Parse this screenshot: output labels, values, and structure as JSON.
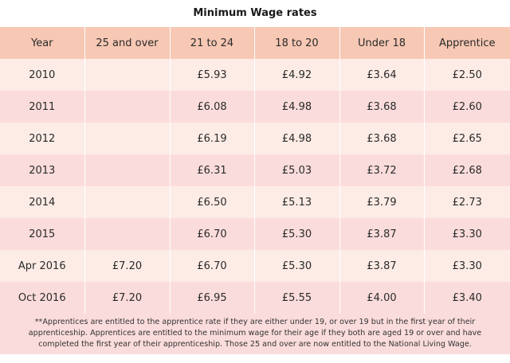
{
  "title": "Minimum Wage rates",
  "table": {
    "headers": [
      "Year",
      "25 and over",
      "21 to 24",
      "18 to 20",
      "Under 18",
      "Apprentice"
    ],
    "rows": [
      [
        "2010",
        "",
        "£5.93",
        "£4.92",
        "£3.64",
        "£2.50"
      ],
      [
        "2011",
        "",
        "£6.08",
        "£4.98",
        "£3.68",
        "£2.60"
      ],
      [
        "2012",
        "",
        "£6.19",
        "£4.98",
        "£3.68",
        "£2.65"
      ],
      [
        "2013",
        "",
        "£6.31",
        "£5.03",
        "£3.72",
        "£2.68"
      ],
      [
        "2014",
        "",
        "£6.50",
        "£5.13",
        "£3.79",
        "£2.73"
      ],
      [
        "2015",
        "",
        "£6.70",
        "£5.30",
        "£3.87",
        "£3.30"
      ],
      [
        "Apr 2016",
        "£7.20",
        "£6.70",
        "£5.30",
        "£3.87",
        "£3.30"
      ],
      [
        "Oct 2016",
        "£7.20",
        "£6.95",
        "£5.55",
        "£4.00",
        "£3.40"
      ]
    ]
  },
  "footnote": "**Apprentices are entitled to the apprentice rate if they are either under 19, or over 19 but in the first year of their apprenticeship. Apprentices are entitled to the minimum wage for their age if they both are aged 19 or over and have completed the first year of their apprenticeship. Those 25 and over are now entitled to the National Living Wage.",
  "colors": {
    "header_bg": "#f7c8b4",
    "row_odd_bg": "#fdece6",
    "row_even_bg": "#fbdcdc"
  }
}
